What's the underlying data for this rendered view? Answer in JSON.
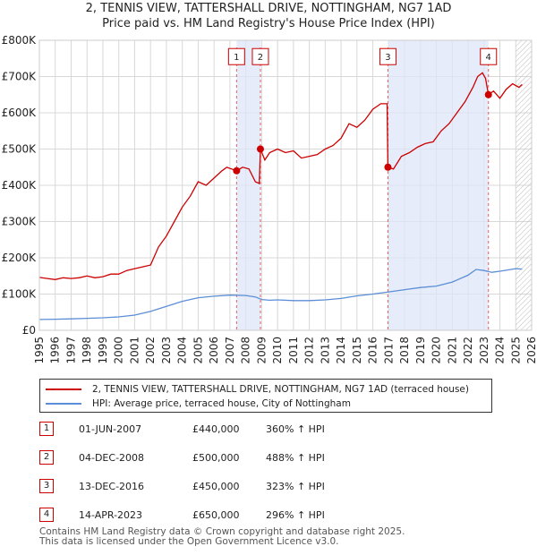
{
  "chart_data": {
    "type": "line",
    "title": "2, TENNIS VIEW, TATTERSHALL DRIVE, NOTTINGHAM, NG7 1AD",
    "subtitle": "Price paid vs. HM Land Registry's House Price Index (HPI)",
    "xlim": [
      1995,
      2026
    ],
    "ylim": [
      0,
      800000
    ],
    "x_ticks": [
      "1995",
      "1996",
      "1997",
      "1998",
      "1999",
      "2000",
      "2001",
      "2002",
      "2003",
      "2004",
      "2005",
      "2006",
      "2007",
      "2008",
      "2009",
      "2010",
      "2011",
      "2012",
      "2013",
      "2014",
      "2015",
      "2016",
      "2017",
      "2018",
      "2019",
      "2020",
      "2021",
      "2022",
      "2023",
      "2024",
      "2025",
      "2026"
    ],
    "y_ticks": [
      {
        "value": 0,
        "label": "£0"
      },
      {
        "value": 100000,
        "label": "£100K"
      },
      {
        "value": 200000,
        "label": "£200K"
      },
      {
        "value": 300000,
        "label": "£300K"
      },
      {
        "value": 400000,
        "label": "£400K"
      },
      {
        "value": 500000,
        "label": "£500K"
      },
      {
        "value": 600000,
        "label": "£600K"
      },
      {
        "value": 700000,
        "label": "£700K"
      },
      {
        "value": 800000,
        "label": "£800K"
      }
    ],
    "grid": true,
    "future_hatch_from": 2025.0,
    "shaded_periods": [
      [
        2007.42,
        2008.92
      ],
      [
        2016.95,
        2023.28
      ]
    ],
    "series": [
      {
        "name": "2, TENNIS VIEW, TATTERSHALL DRIVE, NOTTINGHAM, NG7 1AD (terraced house)",
        "color": "#cc0000",
        "points": [
          [
            1995.0,
            146000
          ],
          [
            1995.5,
            143000
          ],
          [
            1996.0,
            140000
          ],
          [
            1996.5,
            145000
          ],
          [
            1997.0,
            143000
          ],
          [
            1997.5,
            145000
          ],
          [
            1998.0,
            150000
          ],
          [
            1998.5,
            145000
          ],
          [
            1999.0,
            148000
          ],
          [
            1999.5,
            155000
          ],
          [
            2000.0,
            155000
          ],
          [
            2000.5,
            165000
          ],
          [
            2001.0,
            170000
          ],
          [
            2001.5,
            175000
          ],
          [
            2002.0,
            180000
          ],
          [
            2002.5,
            230000
          ],
          [
            2003.0,
            260000
          ],
          [
            2003.5,
            300000
          ],
          [
            2004.0,
            340000
          ],
          [
            2004.5,
            370000
          ],
          [
            2005.0,
            410000
          ],
          [
            2005.5,
            400000
          ],
          [
            2006.0,
            420000
          ],
          [
            2006.5,
            440000
          ],
          [
            2006.8,
            450000
          ],
          [
            2007.42,
            440000
          ],
          [
            2007.8,
            450000
          ],
          [
            2008.2,
            445000
          ],
          [
            2008.6,
            410000
          ],
          [
            2008.85,
            405000
          ],
          [
            2008.92,
            500000
          ],
          [
            2009.2,
            470000
          ],
          [
            2009.5,
            490000
          ],
          [
            2010.0,
            500000
          ],
          [
            2010.5,
            490000
          ],
          [
            2011.0,
            495000
          ],
          [
            2011.5,
            475000
          ],
          [
            2012.0,
            480000
          ],
          [
            2012.5,
            485000
          ],
          [
            2013.0,
            500000
          ],
          [
            2013.5,
            510000
          ],
          [
            2014.0,
            530000
          ],
          [
            2014.5,
            570000
          ],
          [
            2015.0,
            560000
          ],
          [
            2015.5,
            580000
          ],
          [
            2016.0,
            610000
          ],
          [
            2016.5,
            625000
          ],
          [
            2016.9,
            625000
          ],
          [
            2016.95,
            450000
          ],
          [
            2017.3,
            445000
          ],
          [
            2017.8,
            480000
          ],
          [
            2018.3,
            490000
          ],
          [
            2018.8,
            505000
          ],
          [
            2019.3,
            515000
          ],
          [
            2019.8,
            520000
          ],
          [
            2020.3,
            550000
          ],
          [
            2020.8,
            570000
          ],
          [
            2021.3,
            600000
          ],
          [
            2021.8,
            630000
          ],
          [
            2022.3,
            670000
          ],
          [
            2022.6,
            700000
          ],
          [
            2022.9,
            710000
          ],
          [
            2023.1,
            695000
          ],
          [
            2023.28,
            650000
          ],
          [
            2023.6,
            660000
          ],
          [
            2024.0,
            640000
          ],
          [
            2024.4,
            665000
          ],
          [
            2024.8,
            680000
          ],
          [
            2025.2,
            670000
          ],
          [
            2025.4,
            678000
          ]
        ]
      },
      {
        "name": "HPI: Average price, terraced house, City of Nottingham",
        "color": "#5b8ed6",
        "points": [
          [
            1995.0,
            30000
          ],
          [
            1996.0,
            30500
          ],
          [
            1997.0,
            31500
          ],
          [
            1998.0,
            33000
          ],
          [
            1999.0,
            34500
          ],
          [
            2000.0,
            37000
          ],
          [
            2001.0,
            42000
          ],
          [
            2002.0,
            52000
          ],
          [
            2003.0,
            66000
          ],
          [
            2004.0,
            80000
          ],
          [
            2005.0,
            90000
          ],
          [
            2006.0,
            94000
          ],
          [
            2007.0,
            97000
          ],
          [
            2008.0,
            96000
          ],
          [
            2008.6,
            92000
          ],
          [
            2009.0,
            85000
          ],
          [
            2009.5,
            83000
          ],
          [
            2010.0,
            84000
          ],
          [
            2011.0,
            82000
          ],
          [
            2012.0,
            82000
          ],
          [
            2013.0,
            84000
          ],
          [
            2014.0,
            88000
          ],
          [
            2015.0,
            95000
          ],
          [
            2016.0,
            100000
          ],
          [
            2017.0,
            106000
          ],
          [
            2018.0,
            112000
          ],
          [
            2019.0,
            118000
          ],
          [
            2020.0,
            122000
          ],
          [
            2021.0,
            133000
          ],
          [
            2022.0,
            152000
          ],
          [
            2022.5,
            168000
          ],
          [
            2023.0,
            165000
          ],
          [
            2023.5,
            160000
          ],
          [
            2024.0,
            163000
          ],
          [
            2025.0,
            170000
          ],
          [
            2025.4,
            169000
          ]
        ]
      }
    ],
    "sales": [
      {
        "label": "1",
        "x": 2007.42,
        "value": 440000
      },
      {
        "label": "2",
        "x": 2008.92,
        "value": 500000
      },
      {
        "label": "3",
        "x": 2016.95,
        "value": 450000
      },
      {
        "label": "4",
        "x": 2023.28,
        "value": 650000
      }
    ],
    "sale_box_value": 755000
  },
  "legend": {
    "property_label": "2, TENNIS VIEW, TATTERSHALL DRIVE, NOTTINGHAM, NG7 1AD (terraced house)",
    "hpi_label": "HPI: Average price, terraced house, City of Nottingham"
  },
  "sales_table": [
    {
      "num": "1",
      "date": "01-JUN-2007",
      "price": "£440,000",
      "pct": "360% ↑ HPI"
    },
    {
      "num": "2",
      "date": "04-DEC-2008",
      "price": "£500,000",
      "pct": "488% ↑ HPI"
    },
    {
      "num": "3",
      "date": "13-DEC-2016",
      "price": "£450,000",
      "pct": "323% ↑ HPI"
    },
    {
      "num": "4",
      "date": "14-APR-2023",
      "price": "£650,000",
      "pct": "296% ↑ HPI"
    }
  ],
  "footer": {
    "line1": "Contains HM Land Registry data © Crown copyright and database right 2025.",
    "line2": "This data is licensed under the Open Government Licence v3.0."
  }
}
